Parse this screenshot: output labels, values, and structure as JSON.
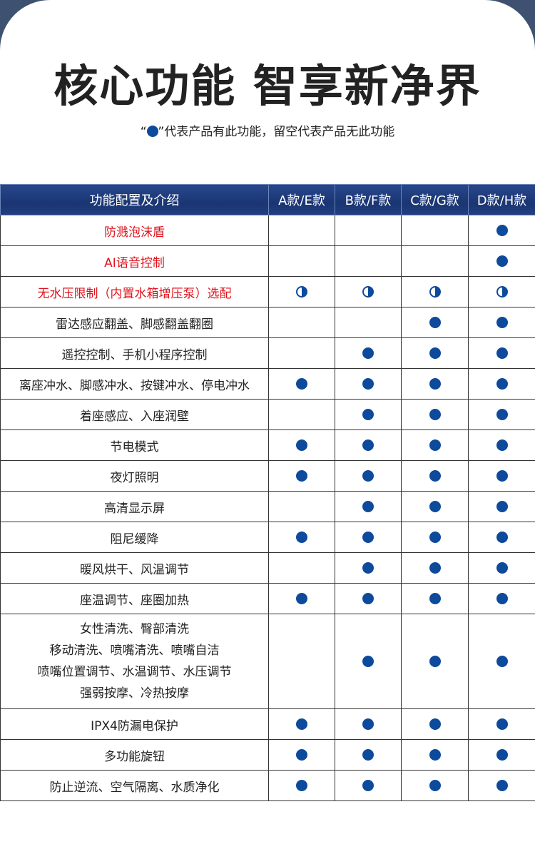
{
  "title": "核心功能 智享新净界",
  "legend": {
    "open_quote": "“",
    "close_quote": "”代表产品有此功能，留空代表产品无此功能"
  },
  "colors": {
    "dot": "#0d4a9c",
    "highlight_text": "#e0121b",
    "header_bg": "#1a3572"
  },
  "legend_marks": {
    "full": "有此功能",
    "half": "选配"
  },
  "table": {
    "headers": [
      "功能配置及介绍",
      "A款/E款",
      "B款/F款",
      "C款/G款",
      "D款/H款"
    ],
    "rows": [
      {
        "feature": [
          "防溅泡沫盾"
        ],
        "highlight": true,
        "marks": [
          "",
          "",
          "",
          "full"
        ]
      },
      {
        "feature": [
          "AI语音控制"
        ],
        "highlight": true,
        "marks": [
          "",
          "",
          "",
          "full"
        ]
      },
      {
        "feature": [
          "无水压限制（内置水箱增压泵）选配"
        ],
        "highlight": true,
        "marks": [
          "half",
          "half",
          "half",
          "half"
        ]
      },
      {
        "feature": [
          "雷达感应翻盖、脚感翻盖翻圈"
        ],
        "highlight": false,
        "marks": [
          "",
          "",
          "full",
          "full"
        ]
      },
      {
        "feature": [
          "遥控控制、手机小程序控制"
        ],
        "highlight": false,
        "marks": [
          "",
          "full",
          "full",
          "full"
        ]
      },
      {
        "feature": [
          "离座冲水、脚感冲水、按键冲水、停电冲水"
        ],
        "highlight": false,
        "marks": [
          "full",
          "full",
          "full",
          "full"
        ]
      },
      {
        "feature": [
          "着座感应、入座润壁"
        ],
        "highlight": false,
        "marks": [
          "",
          "full",
          "full",
          "full"
        ]
      },
      {
        "feature": [
          "节电模式"
        ],
        "highlight": false,
        "marks": [
          "full",
          "full",
          "full",
          "full"
        ]
      },
      {
        "feature": [
          "夜灯照明"
        ],
        "highlight": false,
        "marks": [
          "full",
          "full",
          "full",
          "full"
        ]
      },
      {
        "feature": [
          "高清显示屏"
        ],
        "highlight": false,
        "marks": [
          "",
          "full",
          "full",
          "full"
        ]
      },
      {
        "feature": [
          "阻尼缓降"
        ],
        "highlight": false,
        "marks": [
          "full",
          "full",
          "full",
          "full"
        ]
      },
      {
        "feature": [
          "暖风烘干、风温调节"
        ],
        "highlight": false,
        "marks": [
          "",
          "full",
          "full",
          "full"
        ]
      },
      {
        "feature": [
          "座温调节、座圈加热"
        ],
        "highlight": false,
        "marks": [
          "full",
          "full",
          "full",
          "full"
        ]
      },
      {
        "feature": [
          "女性清洗、臀部清洗",
          "移动清洗、喷嘴清洗、喷嘴自洁",
          "喷嘴位置调节、水温调节、水压调节",
          "强弱按摩、冷热按摩"
        ],
        "highlight": false,
        "marks": [
          "",
          "full",
          "full",
          "full"
        ]
      },
      {
        "feature": [
          "IPX4防漏电保护"
        ],
        "highlight": false,
        "marks": [
          "full",
          "full",
          "full",
          "full"
        ]
      },
      {
        "feature": [
          "多功能旋钮"
        ],
        "highlight": false,
        "marks": [
          "full",
          "full",
          "full",
          "full"
        ]
      },
      {
        "feature": [
          "防止逆流、空气隔离、水质净化"
        ],
        "highlight": false,
        "marks": [
          "full",
          "full",
          "full",
          "full"
        ]
      }
    ]
  }
}
